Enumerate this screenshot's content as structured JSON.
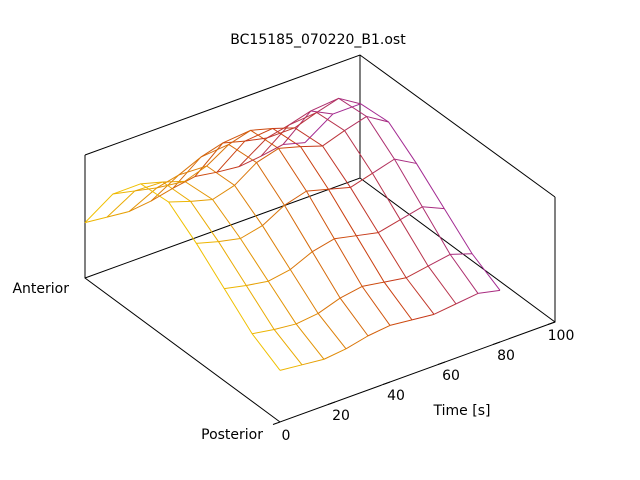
{
  "chart_data": {
    "type": "surface",
    "title": "BC15185_070220_B1.ost",
    "xlabel": "Time [s]",
    "row_labels": [
      "Anterior",
      "Posterior"
    ],
    "x": [
      0,
      8,
      16,
      24,
      32,
      40,
      48,
      56,
      64,
      72,
      80
    ],
    "xlim": [
      0,
      100
    ],
    "xticks": [
      0,
      20,
      40,
      60,
      80,
      100
    ],
    "zlim": [
      0,
      1
    ],
    "colormap": [
      "#f0c000",
      "#c83a10",
      "#8a20e8"
    ],
    "z": [
      [
        0.45,
        0.43,
        0.41,
        0.43,
        0.47,
        0.5,
        0.47,
        0.45,
        0.47,
        0.5,
        0.45
      ],
      [
        0.85,
        0.81,
        0.77,
        0.81,
        0.89,
        0.94,
        0.89,
        0.85,
        0.89,
        0.94,
        0.85
      ],
      [
        1.1,
        1.05,
        0.99,
        1.05,
        1.16,
        1.21,
        1.16,
        1.1,
        1.16,
        1.21,
        1.1
      ],
      [
        1.12,
        1.06,
        1.01,
        1.06,
        1.18,
        1.23,
        1.18,
        1.12,
        1.18,
        1.23,
        1.12
      ],
      [
        0.95,
        0.9,
        0.86,
        0.9,
        1.0,
        1.05,
        1.0,
        0.95,
        1.0,
        1.05,
        0.95
      ],
      [
        0.75,
        0.71,
        0.68,
        0.71,
        0.79,
        0.83,
        0.79,
        0.75,
        0.79,
        0.83,
        0.75
      ],
      [
        0.55,
        0.52,
        0.5,
        0.52,
        0.58,
        0.61,
        0.58,
        0.55,
        0.58,
        0.61,
        0.55
      ],
      [
        0.42,
        0.4,
        0.38,
        0.4,
        0.44,
        0.46,
        0.44,
        0.42,
        0.44,
        0.46,
        0.42
      ]
    ]
  }
}
